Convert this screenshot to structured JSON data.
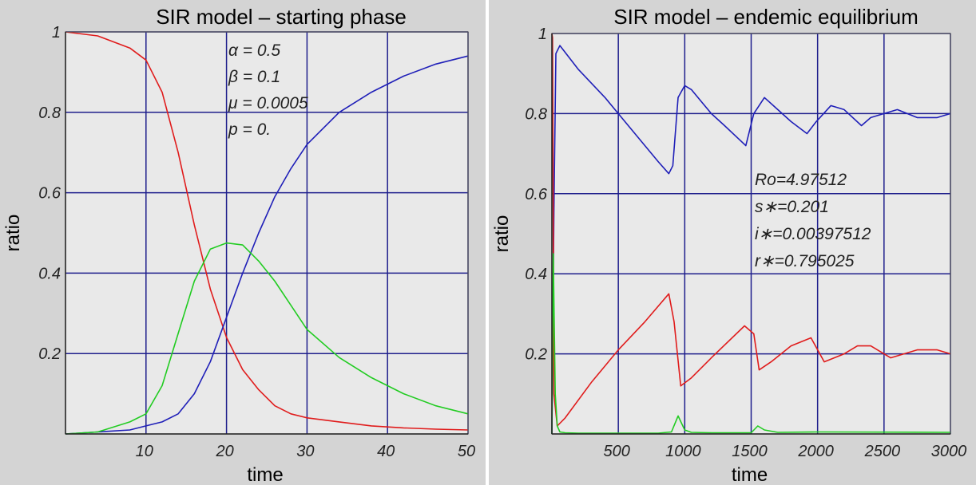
{
  "chart_data": [
    {
      "type": "line",
      "title": "SIR model – starting phase",
      "xlabel": "time",
      "ylabel": "ratio",
      "xlim": [
        0,
        50
      ],
      "ylim": [
        0,
        1
      ],
      "x_ticks": [
        10,
        20,
        30,
        40,
        50
      ],
      "x_tick_labels": [
        "10",
        "20",
        "30",
        "40",
        "50"
      ],
      "y_ticks": [
        0.2,
        0.4,
        0.6,
        0.8,
        1
      ],
      "y_tick_labels": [
        "0.2",
        "0.4",
        "0.6",
        "0.8",
        "1"
      ],
      "grid": true,
      "annotations": [
        "α = 0.5",
        "β = 0.1",
        "μ = 0.0005",
        "p = 0."
      ],
      "series": [
        {
          "color": "#e01c1c",
          "x": [
            0,
            4,
            8,
            10,
            12,
            14,
            16,
            18,
            20,
            22,
            24,
            26,
            28,
            30,
            34,
            38,
            42,
            46,
            50
          ],
          "y": [
            1.0,
            0.99,
            0.96,
            0.93,
            0.85,
            0.7,
            0.52,
            0.36,
            0.24,
            0.16,
            0.11,
            0.07,
            0.05,
            0.04,
            0.03,
            0.02,
            0.015,
            0.012,
            0.01
          ]
        },
        {
          "color": "#1f1fb8",
          "x": [
            0,
            4,
            8,
            10,
            12,
            14,
            16,
            18,
            20,
            22,
            24,
            26,
            28,
            30,
            34,
            38,
            42,
            46,
            50
          ],
          "y": [
            0.0,
            0.005,
            0.01,
            0.02,
            0.03,
            0.05,
            0.1,
            0.18,
            0.29,
            0.4,
            0.5,
            0.59,
            0.66,
            0.72,
            0.8,
            0.85,
            0.89,
            0.92,
            0.94
          ]
        },
        {
          "color": "#22cc22",
          "x": [
            0,
            4,
            8,
            10,
            12,
            14,
            16,
            18,
            20,
            22,
            24,
            26,
            28,
            30,
            34,
            38,
            42,
            46,
            50
          ],
          "y": [
            0.0,
            0.005,
            0.03,
            0.05,
            0.12,
            0.25,
            0.38,
            0.46,
            0.475,
            0.47,
            0.43,
            0.38,
            0.32,
            0.26,
            0.19,
            0.14,
            0.1,
            0.07,
            0.05
          ]
        }
      ]
    },
    {
      "type": "line",
      "title": "SIR model – endemic equilibrium",
      "xlabel": "time",
      "ylabel": "ratio",
      "xlim": [
        0,
        3000
      ],
      "ylim": [
        0,
        1
      ],
      "x_ticks": [
        500,
        1000,
        1500,
        2000,
        2500,
        3000
      ],
      "x_tick_labels": [
        "500",
        "1000",
        "1500",
        "2000",
        "2500",
        "3000"
      ],
      "y_ticks": [
        0.2,
        0.4,
        0.6,
        0.8,
        1
      ],
      "y_tick_labels": [
        "0.2",
        "0.4",
        "0.6",
        "0.8",
        "1"
      ],
      "grid": true,
      "annotations": [
        "Ro=4.97512",
        "s∗=0.201",
        "i∗=0.00397512",
        "r∗=0.795025"
      ],
      "series": [
        {
          "color": "#1f1fb8",
          "x": [
            0,
            15,
            30,
            60,
            200,
            400,
            600,
            800,
            880,
            910,
            950,
            1000,
            1050,
            1200,
            1300,
            1460,
            1520,
            1600,
            1700,
            1800,
            1920,
            1990,
            2100,
            2200,
            2330,
            2400,
            2500,
            2600,
            2750,
            2900,
            3000
          ],
          "y": [
            0,
            0.55,
            0.95,
            0.97,
            0.91,
            0.84,
            0.76,
            0.68,
            0.65,
            0.67,
            0.84,
            0.87,
            0.86,
            0.8,
            0.77,
            0.72,
            0.8,
            0.84,
            0.81,
            0.78,
            0.75,
            0.78,
            0.82,
            0.81,
            0.77,
            0.79,
            0.8,
            0.81,
            0.79,
            0.79,
            0.8
          ]
        },
        {
          "color": "#e01c1c",
          "x": [
            0,
            5,
            15,
            40,
            100,
            300,
            500,
            700,
            880,
            920,
            970,
            1050,
            1200,
            1450,
            1520,
            1560,
            1650,
            1800,
            1950,
            2050,
            2200,
            2300,
            2400,
            2550,
            2750,
            2900,
            3000
          ],
          "y": [
            1,
            0.99,
            0.1,
            0.02,
            0.04,
            0.13,
            0.21,
            0.28,
            0.35,
            0.28,
            0.12,
            0.14,
            0.19,
            0.27,
            0.25,
            0.16,
            0.18,
            0.22,
            0.24,
            0.18,
            0.2,
            0.22,
            0.22,
            0.19,
            0.21,
            0.21,
            0.2
          ]
        },
        {
          "color": "#22cc22",
          "x": [
            0,
            10,
            25,
            40,
            60,
            100,
            200,
            800,
            900,
            950,
            1000,
            1050,
            1200,
            1500,
            1550,
            1600,
            1700,
            2000,
            3000
          ],
          "y": [
            0,
            0.45,
            0.1,
            0.02,
            0.005,
            0.003,
            0.002,
            0.002,
            0.005,
            0.045,
            0.01,
            0.004,
            0.003,
            0.003,
            0.02,
            0.01,
            0.004,
            0.005,
            0.004
          ]
        }
      ]
    }
  ]
}
